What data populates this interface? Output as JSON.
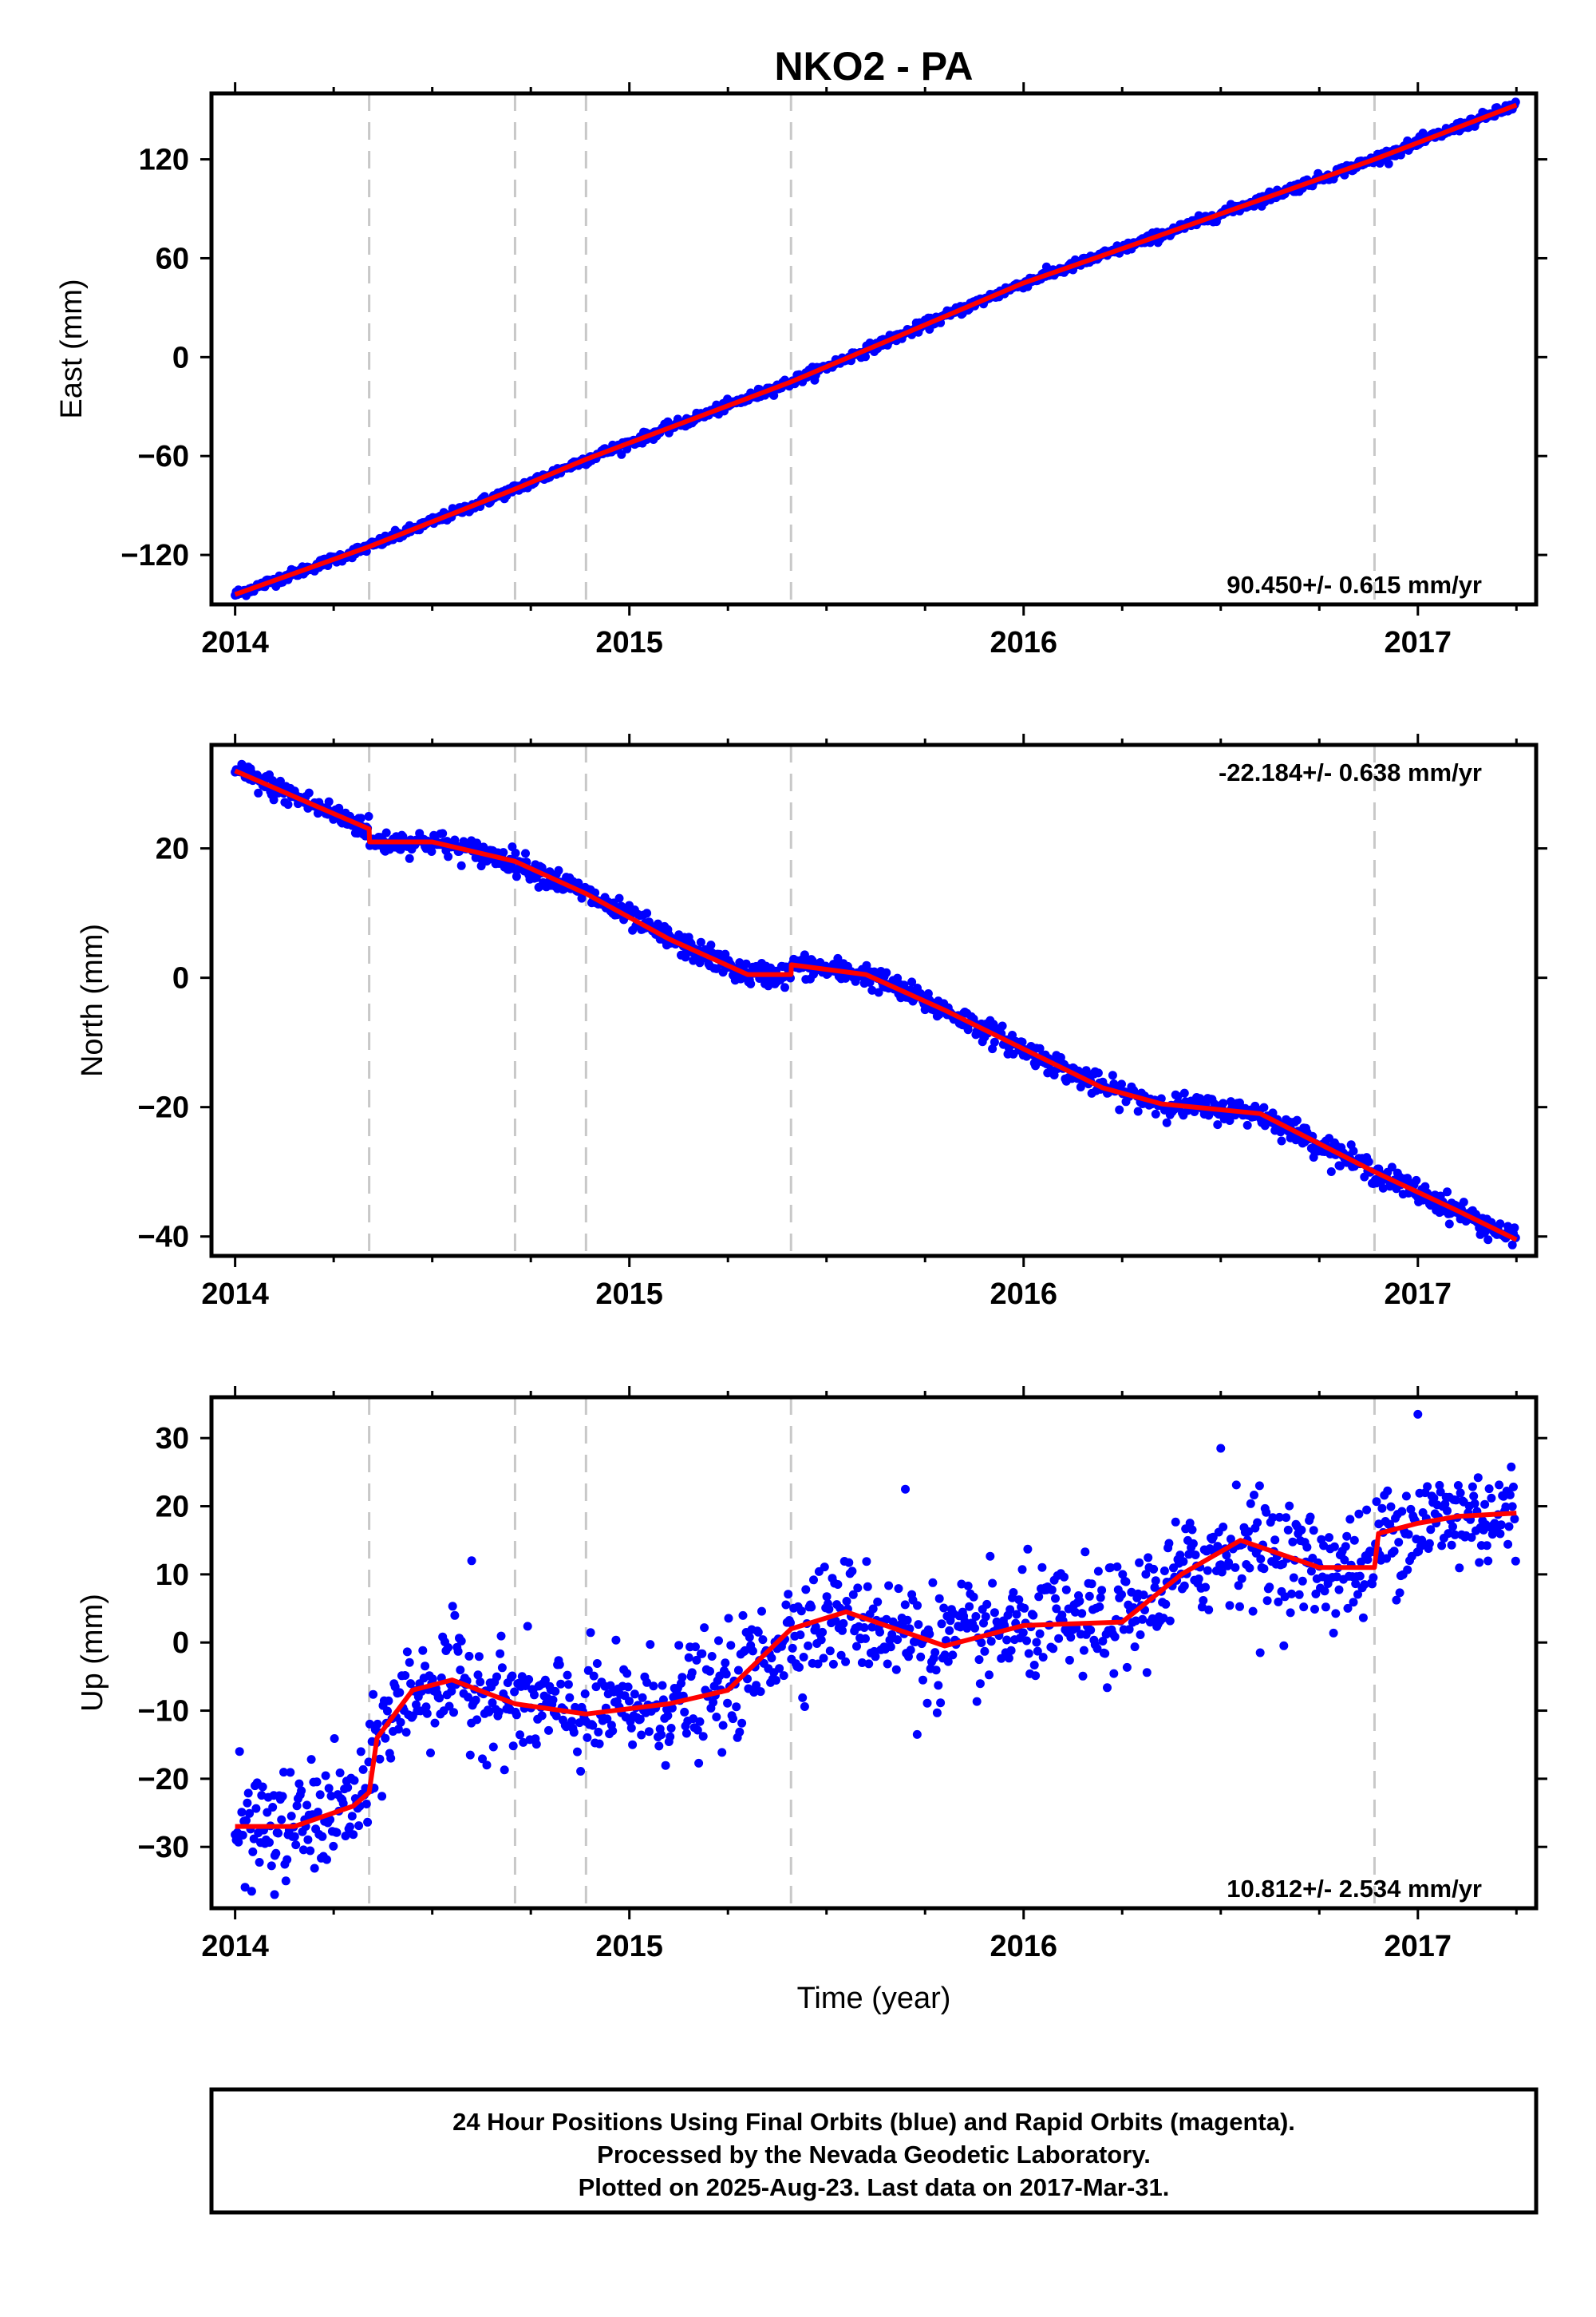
{
  "title": "NKO2 - PA",
  "xlabel": "Time (year)",
  "footer": {
    "line1": "24 Hour Positions Using Final Orbits (blue) and Rapid Orbits (magenta).",
    "line2": "Processed by the Nevada Geodetic Laboratory.",
    "line3": "Plotted on 2025-Aug-23. Last data on 2017-Mar-31."
  },
  "colors": {
    "points": "#0000ff",
    "fit": "#ff0000",
    "event_lines": "#c8c8c8",
    "frame": "#000000"
  },
  "chart_data": [
    {
      "type": "scatter",
      "ylabel": "East (mm)",
      "rate_label": "90.450+/- 0.615 mm/yr",
      "rate_position": "bottom-right",
      "xlim": [
        2013.94,
        2017.3
      ],
      "ylim": [
        -150,
        160
      ],
      "xticks": [
        2014,
        2015,
        2016,
        2017
      ],
      "yticks": [
        -120,
        -60,
        0,
        60,
        120
      ],
      "xtick_labels": [
        "2014",
        "2015",
        "2016",
        "2017"
      ],
      "ytick_labels": [
        "−120",
        "−60",
        "0",
        "60",
        "120"
      ],
      "event_lines": [
        2014.34,
        2014.71,
        2014.89,
        2015.41,
        2016.89
      ],
      "series": [
        {
          "kind": "fit",
          "x": [
            2014.0,
            2014.34,
            2014.71,
            2014.89,
            2015.41,
            2016.0,
            2016.3,
            2016.89,
            2017.25
          ],
          "y": [
            -144,
            -115,
            -80,
            -62,
            -15,
            45,
            70,
            120,
            153
          ]
        }
      ],
      "scatter_noise": 1.5
    },
    {
      "type": "scatter",
      "ylabel": "North (mm)",
      "rate_label": "-22.184+/- 0.638 mm/yr",
      "rate_position": "top-right",
      "xlim": [
        2013.94,
        2017.3
      ],
      "ylim": [
        -43,
        36
      ],
      "xticks": [
        2014,
        2015,
        2016,
        2017
      ],
      "yticks": [
        -40,
        -20,
        0,
        20
      ],
      "xtick_labels": [
        "2014",
        "2015",
        "2016",
        "2017"
      ],
      "ytick_labels": [
        "−40",
        "−20",
        "0",
        "20"
      ],
      "event_lines": [
        2014.34,
        2014.71,
        2014.89,
        2015.41,
        2016.89
      ],
      "series": [
        {
          "kind": "fit",
          "x": [
            2014.0,
            2014.15,
            2014.34,
            2014.341,
            2014.5,
            2014.71,
            2014.89,
            2015.1,
            2015.3,
            2015.41,
            2015.411,
            2015.6,
            2015.8,
            2016.0,
            2016.2,
            2016.35,
            2016.6,
            2016.89,
            2017.1,
            2017.25
          ],
          "y": [
            32,
            28,
            23,
            21,
            21,
            18,
            13,
            6,
            0.5,
            0.5,
            2,
            0.5,
            -5,
            -11,
            -17,
            -19.5,
            -21,
            -30,
            -36,
            -40.5
          ]
        }
      ],
      "scatter_noise": 0.9
    },
    {
      "type": "scatter",
      "ylabel": "Up (mm)",
      "rate_label": "10.812+/- 2.534 mm/yr",
      "rate_position": "bottom-right",
      "xlim": [
        2013.94,
        2017.3
      ],
      "ylim": [
        -39,
        36
      ],
      "xticks": [
        2014,
        2015,
        2016,
        2017
      ],
      "yticks": [
        -30,
        -20,
        -10,
        0,
        10,
        20,
        30
      ],
      "xtick_labels": [
        "2014",
        "2015",
        "2016",
        "2017"
      ],
      "ytick_labels": [
        "−30",
        "−20",
        "−10",
        "0",
        "10",
        "20",
        "30"
      ],
      "event_lines": [
        2014.34,
        2014.71,
        2014.89,
        2015.41,
        2016.89
      ],
      "series": [
        {
          "kind": "fit",
          "x": [
            2014.0,
            2014.15,
            2014.3,
            2014.34,
            2014.36,
            2014.45,
            2014.55,
            2014.71,
            2014.89,
            2015.1,
            2015.25,
            2015.41,
            2015.55,
            2015.8,
            2016.0,
            2016.25,
            2016.4,
            2016.55,
            2016.75,
            2016.89,
            2016.9,
            2017.0,
            2017.1,
            2017.25
          ],
          "y": [
            -27,
            -27,
            -24,
            -22,
            -14,
            -7,
            -5.5,
            -9,
            -10.5,
            -9,
            -7,
            2,
            4.5,
            -0.5,
            2.5,
            3,
            10,
            15,
            11,
            11,
            16,
            17.5,
            18.5,
            19
          ]
        }
      ],
      "scatter_noise": 4,
      "outliers": [
        {
          "x": 2014.1,
          "y": -37
        },
        {
          "x": 2014.6,
          "y": 12
        },
        {
          "x": 2015.7,
          "y": 22.5
        },
        {
          "x": 2015.73,
          "y": -13.5
        },
        {
          "x": 2016.5,
          "y": 28.5
        },
        {
          "x": 2016.6,
          "y": -1.5
        },
        {
          "x": 2017.0,
          "y": 33.5
        }
      ]
    }
  ]
}
